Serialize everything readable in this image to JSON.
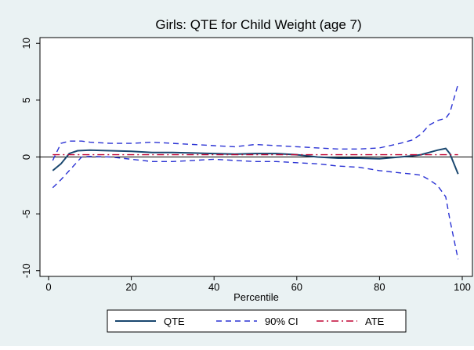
{
  "chart_data": {
    "type": "line",
    "title": "Girls: QTE for Child Weight (age 7)",
    "xlabel": "Percentile",
    "ylabel": "",
    "xlim": [
      0,
      100
    ],
    "ylim": [
      -10.5,
      10.5
    ],
    "xticks": [
      "0",
      "20",
      "40",
      "60",
      "80",
      "100"
    ],
    "yticks": [
      "10",
      "5",
      "0",
      "-5",
      "-10"
    ],
    "xtick_values": [
      0,
      20,
      40,
      60,
      80,
      100
    ],
    "ytick_values": [
      10,
      5,
      0,
      -5,
      -10
    ],
    "grid": false,
    "reference_line_y": 0,
    "legend_position": "bottom",
    "series": [
      {
        "name": "QTE",
        "color": "#1a476f",
        "style": "solid",
        "x": [
          1,
          3,
          5,
          7,
          10,
          15,
          20,
          25,
          30,
          35,
          40,
          45,
          50,
          55,
          60,
          65,
          70,
          75,
          80,
          85,
          88,
          90,
          92,
          94,
          96,
          97,
          99
        ],
        "y": [
          -1.2,
          -0.6,
          0.3,
          0.55,
          0.6,
          0.55,
          0.5,
          0.4,
          0.4,
          0.35,
          0.3,
          0.25,
          0.3,
          0.3,
          0.2,
          0.0,
          -0.1,
          -0.1,
          -0.15,
          0.0,
          0.1,
          0.2,
          0.4,
          0.6,
          0.75,
          0.3,
          -1.5
        ]
      },
      {
        "name": "90% CI",
        "color": "#2a32d4",
        "style": "dashed",
        "x": [
          1,
          3,
          5,
          8,
          10,
          15,
          20,
          25,
          30,
          35,
          40,
          45,
          50,
          55,
          60,
          65,
          70,
          75,
          80,
          85,
          88,
          90,
          92,
          94,
          96,
          97,
          99
        ],
        "y": [
          -0.3,
          1.2,
          1.4,
          1.4,
          1.3,
          1.2,
          1.2,
          1.3,
          1.2,
          1.1,
          1.0,
          0.9,
          1.1,
          1.0,
          0.9,
          0.8,
          0.7,
          0.7,
          0.8,
          1.2,
          1.5,
          2.0,
          2.8,
          3.2,
          3.4,
          3.9,
          6.4
        ]
      },
      {
        "name": "90% CI",
        "color": "#2a32d4",
        "style": "dashed",
        "x": [
          1,
          3,
          5,
          8,
          10,
          15,
          20,
          25,
          30,
          35,
          40,
          45,
          50,
          55,
          60,
          65,
          70,
          75,
          80,
          85,
          88,
          90,
          92,
          94,
          96,
          97,
          99
        ],
        "y": [
          -2.7,
          -2.0,
          -1.2,
          0.0,
          0.05,
          0.0,
          -0.2,
          -0.4,
          -0.4,
          -0.3,
          -0.2,
          -0.3,
          -0.4,
          -0.4,
          -0.5,
          -0.6,
          -0.8,
          -0.9,
          -1.2,
          -1.4,
          -1.5,
          -1.6,
          -2.0,
          -2.5,
          -3.5,
          -5.5,
          -9.0
        ]
      },
      {
        "name": "ATE",
        "color": "#c10534",
        "style": "dashdot",
        "x": [
          1,
          99
        ],
        "y": [
          0.2,
          0.2
        ]
      }
    ],
    "legend": [
      {
        "label": "QTE",
        "color": "#1a476f",
        "style": "solid"
      },
      {
        "label": "90% CI",
        "color": "#2a32d4",
        "style": "dashed"
      },
      {
        "label": "ATE",
        "color": "#c10534",
        "style": "dashdot"
      }
    ]
  }
}
